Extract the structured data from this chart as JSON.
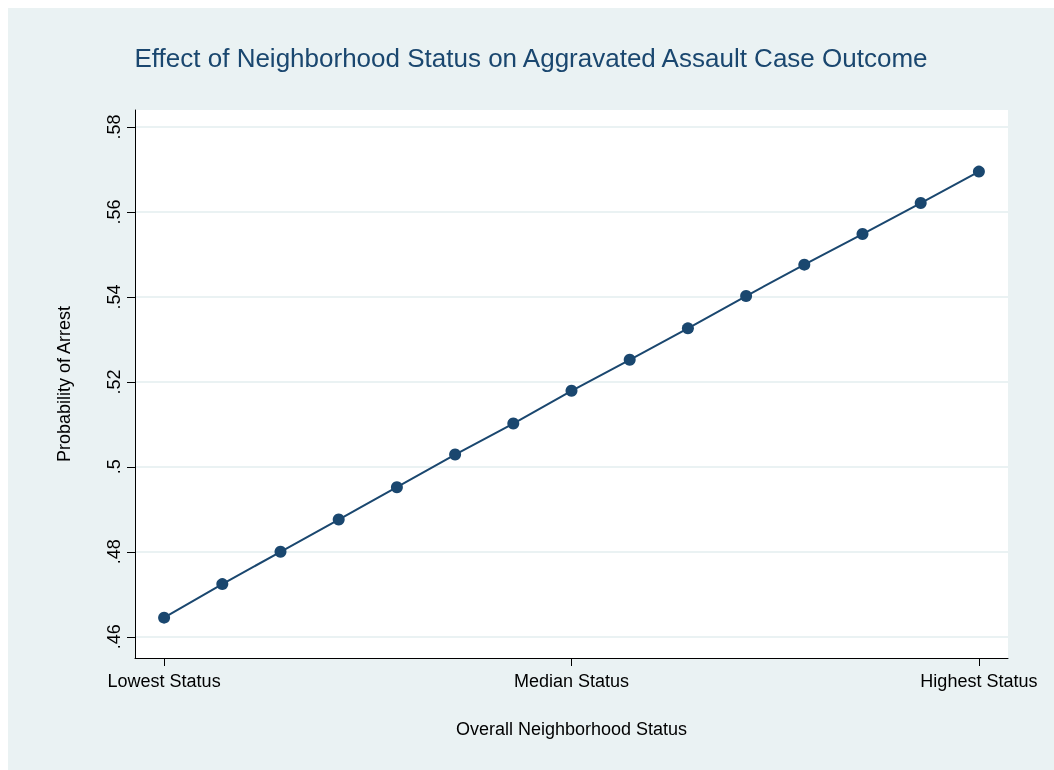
{
  "chart_data": {
    "type": "line",
    "title": "Effect of Neighborhood Status on Aggravated Assault Case Outcome",
    "xlabel": "Overall Neighborhood Status",
    "ylabel": "Probability of Arrest",
    "categories": [
      "Lowest Status",
      null,
      null,
      null,
      null,
      null,
      null,
      "Median Status",
      null,
      null,
      null,
      null,
      null,
      null,
      "Highest Status"
    ],
    "series": [
      {
        "color": "#1a476f",
        "values": [
          0.4645,
          0.4724,
          0.48,
          0.4876,
          0.4952,
          0.5029,
          0.5102,
          0.5179,
          0.5252,
          0.5326,
          0.5402,
          0.5476,
          0.5548,
          0.5621,
          0.5695
        ]
      }
    ],
    "ylim": [
      0.455,
      0.584
    ],
    "yticks": [
      {
        "value": 0.46,
        "label": ".46"
      },
      {
        "value": 0.48,
        "label": ".48"
      },
      {
        "value": 0.5,
        "label": ".5"
      },
      {
        "value": 0.52,
        "label": ".52"
      },
      {
        "value": 0.54,
        "label": ".54"
      },
      {
        "value": 0.56,
        "label": ".56"
      },
      {
        "value": 0.58,
        "label": ".58"
      }
    ],
    "grid": "y",
    "marker": "circle",
    "line_style": "solid"
  }
}
